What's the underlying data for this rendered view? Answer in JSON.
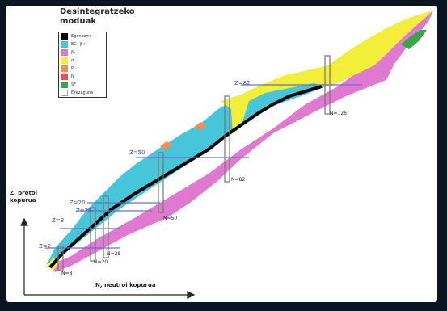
{
  "title": "Desintegratzeko moduak",
  "legend": [
    {
      "label": "Egonkorra",
      "color": "#000000"
    },
    {
      "label": "EC+β+",
      "color": "#46c6d8"
    },
    {
      "label": "β-",
      "color": "#e07ad0"
    },
    {
      "label": "α",
      "color": "#f2ee3a"
    },
    {
      "label": "P",
      "color": "#f28f50"
    },
    {
      "label": "N",
      "color": "#e85060"
    },
    {
      "label": "SF",
      "color": "#3aa64a"
    },
    {
      "label": "Ezezaguna",
      "color": "#ffffff"
    }
  ],
  "axis": {
    "y_label": "Z, protoi kopurua",
    "x_label": "N, neutroi kopurua"
  },
  "magic_numbers": {
    "proton_labels": [
      "Z=2",
      "Z=8",
      "Z=20",
      "Z=28",
      "Z=50",
      "Z=82"
    ],
    "neutron_labels": [
      "N=8",
      "N=20",
      "N=28",
      "N=50",
      "N=82",
      "N=126"
    ]
  },
  "colors": {
    "background": "#0b1522",
    "stable": "#000000",
    "ec_beta_plus": "#46c6d8",
    "beta_minus": "#e07ad0",
    "alpha": "#f2ee3a",
    "proton": "#f28f50",
    "neutron": "#e85060",
    "spontaneous_fission": "#3aa64a",
    "magic_line": "#6a6ad8"
  }
}
